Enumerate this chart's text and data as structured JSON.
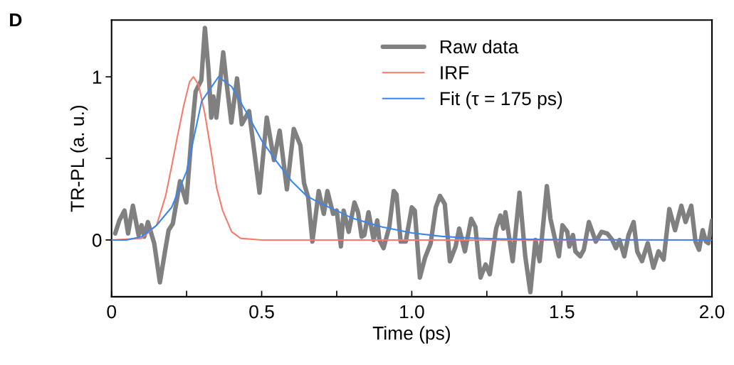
{
  "chart_data": {
    "type": "line",
    "title": "D",
    "xlabel": "Time (ps)",
    "ylabel": "TR-PL (a. u.)",
    "xlim": [
      0,
      2.0
    ],
    "ylim": [
      -0.348,
      1.348
    ],
    "xticks": [
      0,
      {
        "value": 0.25,
        "label": null
      },
      0.5,
      {
        "value": 0.75,
        "label": null
      },
      {
        "value": 1.0,
        "label": "1.0"
      },
      {
        "value": 1.25,
        "label": null
      },
      1.5,
      {
        "value": 1.75,
        "label": null
      },
      {
        "value": 2.0,
        "label": "2.0"
      }
    ],
    "yticks": [
      0,
      {
        "value": 0.5,
        "label": null
      },
      1
    ],
    "legend": "top right",
    "grid": false,
    "marker": "none",
    "line_style": "solid",
    "series": [
      {
        "name": "Raw data",
        "color": "#808080",
        "x": [
          0.012,
          0.026,
          0.043,
          0.055,
          0.071,
          0.09,
          0.1,
          0.109,
          0.121,
          0.142,
          0.161,
          0.178,
          0.19,
          0.204,
          0.228,
          0.249,
          0.268,
          0.28,
          0.299,
          0.311,
          0.323,
          0.332,
          0.339,
          0.349,
          0.372,
          0.382,
          0.399,
          0.418,
          0.434,
          0.458,
          0.47,
          0.493,
          0.517,
          0.541,
          0.56,
          0.584,
          0.607,
          0.629,
          0.641,
          0.655,
          0.669,
          0.69,
          0.707,
          0.719,
          0.738,
          0.75,
          0.764,
          0.773,
          0.79,
          0.809,
          0.821,
          0.833,
          0.842,
          0.856,
          0.873,
          0.885,
          0.892,
          0.906,
          0.925,
          0.94,
          0.949,
          0.963,
          0.98,
          1.0,
          1.01,
          1.027,
          1.044,
          1.063,
          1.08,
          1.094,
          1.11,
          1.127,
          1.146,
          1.158,
          1.177,
          1.198,
          1.212,
          1.229,
          1.246,
          1.26,
          1.281,
          1.295,
          1.305,
          1.312,
          1.336,
          1.359,
          1.378,
          1.395,
          1.412,
          1.426,
          1.45,
          1.462,
          1.49,
          1.502,
          1.518,
          1.525,
          1.537,
          1.545,
          1.561,
          1.573,
          1.59,
          1.613,
          1.632,
          1.651,
          1.668,
          1.68,
          1.692,
          1.708,
          1.722,
          1.739,
          1.751,
          1.767,
          1.786,
          1.805,
          1.822,
          1.839,
          1.858,
          1.877,
          1.898,
          1.912,
          1.931,
          1.945,
          1.957,
          1.969,
          1.98,
          1.988,
          2.0
        ],
        "values": [
          0.04,
          0.12,
          0.18,
          0.04,
          0.21,
          0.03,
          0.09,
          0.02,
          0.11,
          -0.02,
          -0.26,
          -0.07,
          0.06,
          0.1,
          0.36,
          0.23,
          0.68,
          0.91,
          0.98,
          1.3,
          1.04,
          0.75,
          0.88,
          0.75,
          1.15,
          0.98,
          0.72,
          0.99,
          0.71,
          0.79,
          0.62,
          0.29,
          0.75,
          0.49,
          0.67,
          0.31,
          0.68,
          0.58,
          0.35,
          0.26,
          -0.01,
          0.3,
          0.16,
          0.3,
          0.16,
          0.18,
          -0.04,
          0.18,
          0.05,
          0.23,
          0.17,
          0.02,
          0.03,
          0.17,
          0.0,
          0.12,
          0.0,
          -0.05,
          0.08,
          0.3,
          0.28,
          -0.01,
          -0.01,
          0.2,
          0.18,
          -0.23,
          -0.11,
          -0.02,
          0.2,
          0.27,
          0.22,
          -0.13,
          -0.04,
          0.07,
          -0.07,
          0.13,
          0.08,
          -0.23,
          -0.15,
          -0.21,
          0.07,
          0.15,
          0.07,
          0.17,
          -0.13,
          0.29,
          -0.1,
          -0.32,
          0.0,
          -0.13,
          0.33,
          0.13,
          -0.1,
          0.09,
          0.05,
          -0.04,
          0.03,
          -0.07,
          -0.1,
          -0.06,
          0.11,
          -0.01,
          0.05,
          0.04,
          0.0,
          -0.05,
          0.0,
          -0.1,
          0.03,
          0.11,
          -0.07,
          -0.13,
          -0.02,
          -0.17,
          -0.07,
          -0.12,
          0.19,
          0.06,
          0.21,
          0.11,
          0.21,
          -0.01,
          -0.06,
          0.06,
          -0.01,
          -0.02,
          0.12
        ]
      },
      {
        "name": "IRF",
        "color": "#f87a6a",
        "x": [
          0,
          0.1,
          0.15,
          0.18,
          0.2,
          0.22,
          0.24,
          0.26,
          0.273,
          0.29,
          0.31,
          0.33,
          0.35,
          0.37,
          0.4,
          0.43,
          0.5,
          2.0
        ],
        "values": [
          0,
          0.01,
          0.09,
          0.27,
          0.45,
          0.64,
          0.82,
          0.97,
          1.0,
          0.95,
          0.78,
          0.56,
          0.32,
          0.18,
          0.05,
          0.01,
          0,
          0
        ]
      },
      {
        "name": "Fit (τ = 175 ps)",
        "color": "#3a85f0",
        "x": [
          0,
          0.05,
          0.1,
          0.15,
          0.2,
          0.25,
          0.3,
          0.356,
          0.4,
          0.45,
          0.5,
          0.55,
          0.6,
          0.65,
          0.7,
          0.75,
          0.8,
          0.9,
          1.0,
          1.1,
          1.2,
          1.3,
          1.5,
          2.0
        ],
        "values": [
          0,
          0.0,
          0.02,
          0.09,
          0.2,
          0.42,
          0.85,
          1.0,
          0.94,
          0.78,
          0.61,
          0.48,
          0.36,
          0.27,
          0.22,
          0.18,
          0.135,
          0.08,
          0.043,
          0.022,
          0.012,
          0.006,
          0.002,
          0
        ]
      }
    ]
  }
}
